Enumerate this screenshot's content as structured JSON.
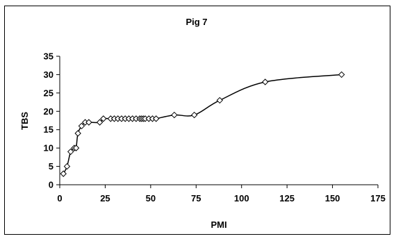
{
  "chart_data": {
    "type": "line",
    "title": "Pig 7",
    "xlabel": "PMI",
    "ylabel": "TBS",
    "xlim": [
      0,
      175
    ],
    "ylim": [
      0,
      35
    ],
    "xticks": [
      0,
      25,
      50,
      75,
      100,
      125,
      150,
      175
    ],
    "yticks": [
      0,
      5,
      10,
      15,
      20,
      25,
      30,
      35
    ],
    "grid": false,
    "legend": "none",
    "line_color": "#000000",
    "marker": "diamond-open",
    "series": [
      {
        "x": [
          2,
          4,
          6,
          8,
          9,
          10,
          12,
          14,
          16,
          22,
          24,
          28,
          30,
          32,
          34,
          36,
          38,
          40,
          42,
          44,
          45,
          46,
          47,
          49,
          51,
          53,
          63,
          74,
          88,
          113,
          155
        ],
        "y": [
          3,
          5,
          9,
          10,
          10,
          14,
          16,
          17,
          17,
          17,
          18,
          18,
          18,
          18,
          18,
          18,
          18,
          18,
          18,
          18,
          18,
          18,
          18,
          18,
          18,
          18,
          19,
          19,
          23,
          28,
          30
        ]
      }
    ]
  }
}
